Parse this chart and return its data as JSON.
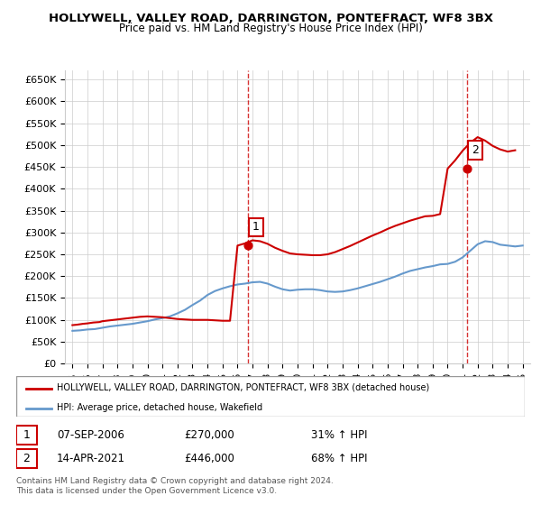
{
  "title": "HOLLYWELL, VALLEY ROAD, DARRINGTON, PONTEFRACT, WF8 3BX",
  "subtitle": "Price paid vs. HM Land Registry's House Price Index (HPI)",
  "legend_property": "HOLLYWELL, VALLEY ROAD, DARRINGTON, PONTEFRACT, WF8 3BX (detached house)",
  "legend_hpi": "HPI: Average price, detached house, Wakefield",
  "footer1": "Contains HM Land Registry data © Crown copyright and database right 2024.",
  "footer2": "This data is licensed under the Open Government Licence v3.0.",
  "sale1_label": "1",
  "sale1_date": "07-SEP-2006",
  "sale1_price": "£270,000",
  "sale1_hpi": "31% ↑ HPI",
  "sale1_year": 2006.7,
  "sale1_value": 270000,
  "sale2_label": "2",
  "sale2_date": "14-APR-2021",
  "sale2_price": "£446,000",
  "sale2_hpi": "68% ↑ HPI",
  "sale2_year": 2021.3,
  "sale2_value": 446000,
  "ylim": [
    0,
    670000
  ],
  "yticks": [
    0,
    50000,
    100000,
    150000,
    200000,
    250000,
    300000,
    350000,
    400000,
    450000,
    500000,
    550000,
    600000,
    650000
  ],
  "property_color": "#cc0000",
  "hpi_color": "#6699cc",
  "vline_color": "#cc0000",
  "background_color": "#ffffff",
  "grid_color": "#cccccc",
  "hpi_data_years": [
    1995,
    1995.5,
    1996,
    1996.5,
    1997,
    1997.5,
    1998,
    1998.5,
    1999,
    1999.5,
    2000,
    2000.5,
    2001,
    2001.5,
    2002,
    2002.5,
    2003,
    2003.5,
    2004,
    2004.5,
    2005,
    2005.5,
    2006,
    2006.5,
    2007,
    2007.5,
    2008,
    2008.5,
    2009,
    2009.5,
    2010,
    2010.5,
    2011,
    2011.5,
    2012,
    2012.5,
    2013,
    2013.5,
    2014,
    2014.5,
    2015,
    2015.5,
    2016,
    2016.5,
    2017,
    2017.5,
    2018,
    2018.5,
    2019,
    2019.5,
    2020,
    2020.5,
    2021,
    2021.5,
    2022,
    2022.5,
    2023,
    2023.5,
    2024,
    2024.5,
    2025
  ],
  "hpi_values": [
    75000,
    76000,
    78000,
    79000,
    82000,
    85000,
    87000,
    89000,
    91000,
    94000,
    97000,
    101000,
    104000,
    108000,
    115000,
    123000,
    134000,
    144000,
    157000,
    166000,
    172000,
    177000,
    181000,
    183000,
    186000,
    187000,
    183000,
    176000,
    170000,
    167000,
    169000,
    170000,
    170000,
    168000,
    165000,
    164000,
    165000,
    168000,
    172000,
    177000,
    182000,
    187000,
    193000,
    199000,
    206000,
    212000,
    216000,
    220000,
    223000,
    227000,
    228000,
    233000,
    243000,
    258000,
    273000,
    280000,
    278000,
    272000,
    270000,
    268000,
    270000
  ],
  "property_data_years": [
    1995,
    1995.3,
    1995.7,
    1996,
    1996.4,
    1996.8,
    1997,
    1997.5,
    1998,
    1998.5,
    1999,
    1999.5,
    2000,
    2000.5,
    2001,
    2001.5,
    2002,
    2002.5,
    2003,
    2003.5,
    2004,
    2004.5,
    2005,
    2005.5,
    2006,
    2006.5,
    2007,
    2007.5,
    2008,
    2008.5,
    2009,
    2009.5,
    2010,
    2010.5,
    2011,
    2011.5,
    2012,
    2012.5,
    2013,
    2013.5,
    2014,
    2014.5,
    2015,
    2015.5,
    2016,
    2016.5,
    2017,
    2017.5,
    2018,
    2018.5,
    2019,
    2019.5,
    2020,
    2020.5,
    2021,
    2021.5,
    2022,
    2022.5,
    2023,
    2023.5,
    2024,
    2024.5
  ],
  "property_values": [
    88000,
    89000,
    91000,
    92000,
    94000,
    95000,
    97000,
    99000,
    101000,
    103000,
    105000,
    107000,
    108000,
    107000,
    106000,
    104000,
    102000,
    101000,
    100000,
    100000,
    100000,
    99000,
    98000,
    98000,
    270000,
    275000,
    282000,
    280000,
    274000,
    265000,
    258000,
    252000,
    250000,
    249000,
    248000,
    248000,
    250000,
    255000,
    262000,
    269000,
    277000,
    285000,
    293000,
    300000,
    308000,
    315000,
    321000,
    327000,
    332000,
    337000,
    338000,
    342000,
    446000,
    465000,
    487000,
    505000,
    518000,
    510000,
    498000,
    490000,
    485000,
    488000
  ]
}
